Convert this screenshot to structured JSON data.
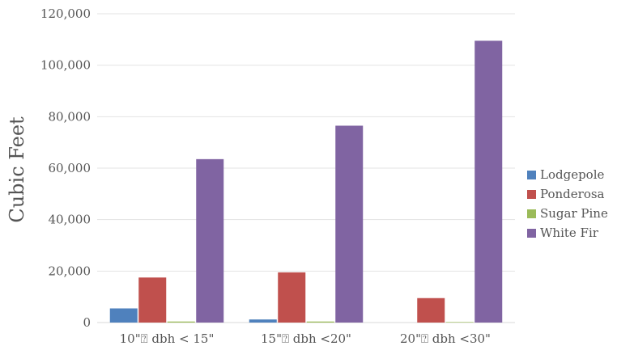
{
  "chart_data": {
    "type": "bar",
    "title": "",
    "xlabel": "",
    "ylabel": "Cubic Feet",
    "ylim": [
      0,
      120000
    ],
    "yticks": [
      0,
      20000,
      40000,
      60000,
      80000,
      100000,
      120000
    ],
    "ytick_labels": [
      "0",
      "20,000",
      "40,000",
      "60,000",
      "80,000",
      "100,000",
      "120,000"
    ],
    "grid": true,
    "legend_position": "right",
    "categories": [
      "10\"⍰ dbh < 15\"",
      "15\"⍰ dbh <20\"",
      "20\"⍰ dbh <30\""
    ],
    "series": [
      {
        "name": "Lodgepole",
        "color": "#4f81bd",
        "values": [
          5500,
          1200,
          0
        ]
      },
      {
        "name": "Ponderosa",
        "color": "#c0504d",
        "values": [
          17500,
          19500,
          9500
        ]
      },
      {
        "name": "Sugar Pine",
        "color": "#9bbb59",
        "values": [
          400,
          400,
          200
        ]
      },
      {
        "name": "White Fir",
        "color": "#8064a2",
        "values": [
          63500,
          76500,
          109500
        ]
      }
    ]
  }
}
